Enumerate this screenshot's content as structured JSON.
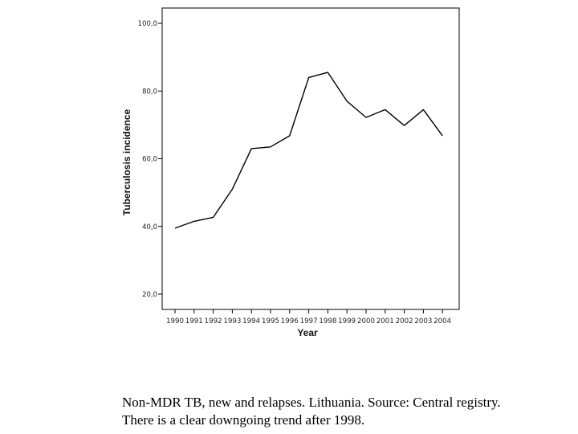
{
  "chart_data": {
    "type": "line",
    "title": "",
    "xlabel": "Year",
    "ylabel": "Tuberculosis incidence",
    "x": [
      "1990",
      "1991",
      "1992",
      "1993",
      "1994",
      "1995",
      "1996",
      "1997",
      "1998",
      "1999",
      "2000",
      "2001",
      "2002",
      "2003",
      "2004"
    ],
    "series": [
      {
        "values": [
          39.5,
          41.5,
          42.7,
          51.0,
          63.0,
          63.5,
          66.8,
          84.0,
          85.5,
          77.0,
          72.2,
          74.5,
          69.8,
          74.5,
          66.8
        ]
      }
    ],
    "yticks": [
      "20,0",
      "40,0",
      "60,0",
      "80,0",
      "100,0"
    ],
    "ylim": [
      20,
      100
    ],
    "grid": false,
    "line_color": "#000000"
  },
  "caption": {
    "line1": "Non-MDR TB, new and relapses. Lithuania. Source: Central registry.",
    "line2": "There is a clear downgoing trend after 1998."
  }
}
